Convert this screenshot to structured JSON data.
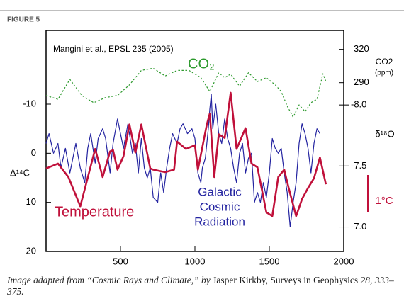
{
  "chart_data": {
    "type": "line",
    "figure_label": "FIGURE 5",
    "source_note": "Mangini et al., EPSL 235 (2005)",
    "ylabel": "Δ¹⁴C",
    "y2label": [
      "CO2",
      "(ppm)"
    ],
    "y3label": "δ¹⁸O",
    "scale_bar_label": "1°C",
    "xlim": [
      0,
      2000
    ],
    "xticks": [
      500,
      1000,
      1500,
      2000
    ],
    "ylim": [
      20,
      -25
    ],
    "yticks": [
      -10,
      0,
      10,
      20
    ],
    "y2lim": [
      138,
      337
    ],
    "y2ticks": [
      320,
      290
    ],
    "y3lim": [
      -6.8,
      -8.61
    ],
    "y3ticks": [
      {
        "value": -8.0,
        "label": "-8.0"
      },
      {
        "value": -7.5,
        "label": "-7.5"
      },
      {
        "value": -7.0,
        "label": "-7.0"
      }
    ],
    "series": [
      {
        "name": "CO₂",
        "color": "#2e9a2e",
        "axis": "y2",
        "dash": true,
        "x": [
          0,
          80,
          160,
          240,
          320,
          400,
          480,
          560,
          640,
          720,
          800,
          880,
          960,
          1040,
          1100,
          1160,
          1200,
          1240,
          1300,
          1360,
          1420,
          1480,
          1540,
          1580,
          1620,
          1660,
          1700,
          1740,
          1780,
          1820,
          1860,
          1880
        ],
        "values": [
          278.5,
          275,
          293,
          278.5,
          272,
          276.6,
          278.5,
          288,
          301,
          303,
          296,
          301,
          301,
          294.5,
          282,
          299,
          294.5,
          297.7,
          286.8,
          299,
          291,
          294.5,
          288,
          282,
          269,
          259,
          270,
          264,
          272,
          275,
          298,
          291
        ]
      },
      {
        "name": [
          "Galactic",
          "Cosmic",
          "Radiation"
        ],
        "color": "#2323a0",
        "axis": "y",
        "x": [
          0,
          20,
          50,
          80,
          100,
          130,
          160,
          200,
          230,
          260,
          280,
          300,
          330,
          350,
          380,
          400,
          430,
          450,
          480,
          500,
          520,
          550,
          580,
          600,
          620,
          640,
          660,
          680,
          700,
          720,
          750,
          770,
          790,
          810,
          830,
          850,
          880,
          900,
          920,
          950,
          980,
          1000,
          1020,
          1040,
          1050,
          1070,
          1090,
          1100,
          1110,
          1120,
          1140,
          1160,
          1180,
          1200,
          1220,
          1240,
          1260,
          1280,
          1300,
          1320,
          1340,
          1360,
          1380,
          1400,
          1420,
          1440,
          1460,
          1480,
          1500,
          1520,
          1540,
          1560,
          1580,
          1600,
          1620,
          1640,
          1660,
          1680,
          1700,
          1720,
          1740,
          1760,
          1780,
          1800,
          1820,
          1840
        ],
        "values": [
          -2,
          -4,
          0,
          -2,
          3,
          -1,
          4,
          -2,
          3,
          6,
          -1,
          -4,
          2,
          -3,
          -5,
          -3,
          4,
          -2,
          -7,
          -4,
          -1,
          -6,
          0,
          -2,
          4,
          -3,
          3,
          5,
          3,
          9,
          10,
          4,
          8,
          3,
          -1,
          -4,
          -2,
          -5,
          -6,
          -4,
          -5,
          -3,
          4,
          6,
          3,
          1,
          -5,
          -9,
          -12,
          -5,
          -10,
          -4,
          -2,
          -7,
          -3,
          -1,
          3,
          6,
          0,
          -2,
          4,
          1,
          0,
          10,
          8,
          10,
          6,
          9,
          4,
          -3,
          -1,
          0,
          -1,
          4,
          8,
          15,
          10,
          6,
          -2,
          -6,
          -4,
          -1,
          4,
          -2,
          -5,
          -4
        ]
      },
      {
        "name": "Temperature",
        "color": "#c0103a",
        "axis": "y3",
        "width": 2.6,
        "x": [
          0,
          80,
          150,
          230,
          330,
          380,
          430,
          450,
          480,
          520,
          560,
          600,
          640,
          700,
          720,
          800,
          860,
          880,
          940,
          1000,
          1020,
          1080,
          1100,
          1130,
          1160,
          1200,
          1240,
          1280,
          1340,
          1380,
          1420,
          1480,
          1520,
          1560,
          1600,
          1630,
          1680,
          1720,
          1760,
          1800,
          1840,
          1880
        ],
        "values": [
          -7.48,
          -7.52,
          -7.41,
          -7.17,
          -7.64,
          -7.41,
          -7.62,
          -7.63,
          -7.47,
          -7.58,
          -7.84,
          -7.61,
          -7.84,
          -7.48,
          -7.47,
          -7.45,
          -7.47,
          -7.7,
          -7.64,
          -7.67,
          -7.47,
          -7.84,
          -7.93,
          -7.41,
          -7.76,
          -7.73,
          -8.1,
          -7.64,
          -7.81,
          -7.52,
          -7.49,
          -7.12,
          -7.09,
          -7.41,
          -7.47,
          -7.32,
          -7.09,
          -7.23,
          -7.32,
          -7.4,
          -7.57,
          -7.35
        ]
      }
    ]
  },
  "caption": [
    {
      "text": "Image adapted from “Cosmic Rays and Climate,” by ",
      "italic": true
    },
    {
      "text": "Jasper Kirkby, ",
      "italic": false
    },
    {
      "text": "Surveys in Geophysics ",
      "italic": false
    },
    {
      "text": "28, 333–375.",
      "italic": true
    }
  ]
}
